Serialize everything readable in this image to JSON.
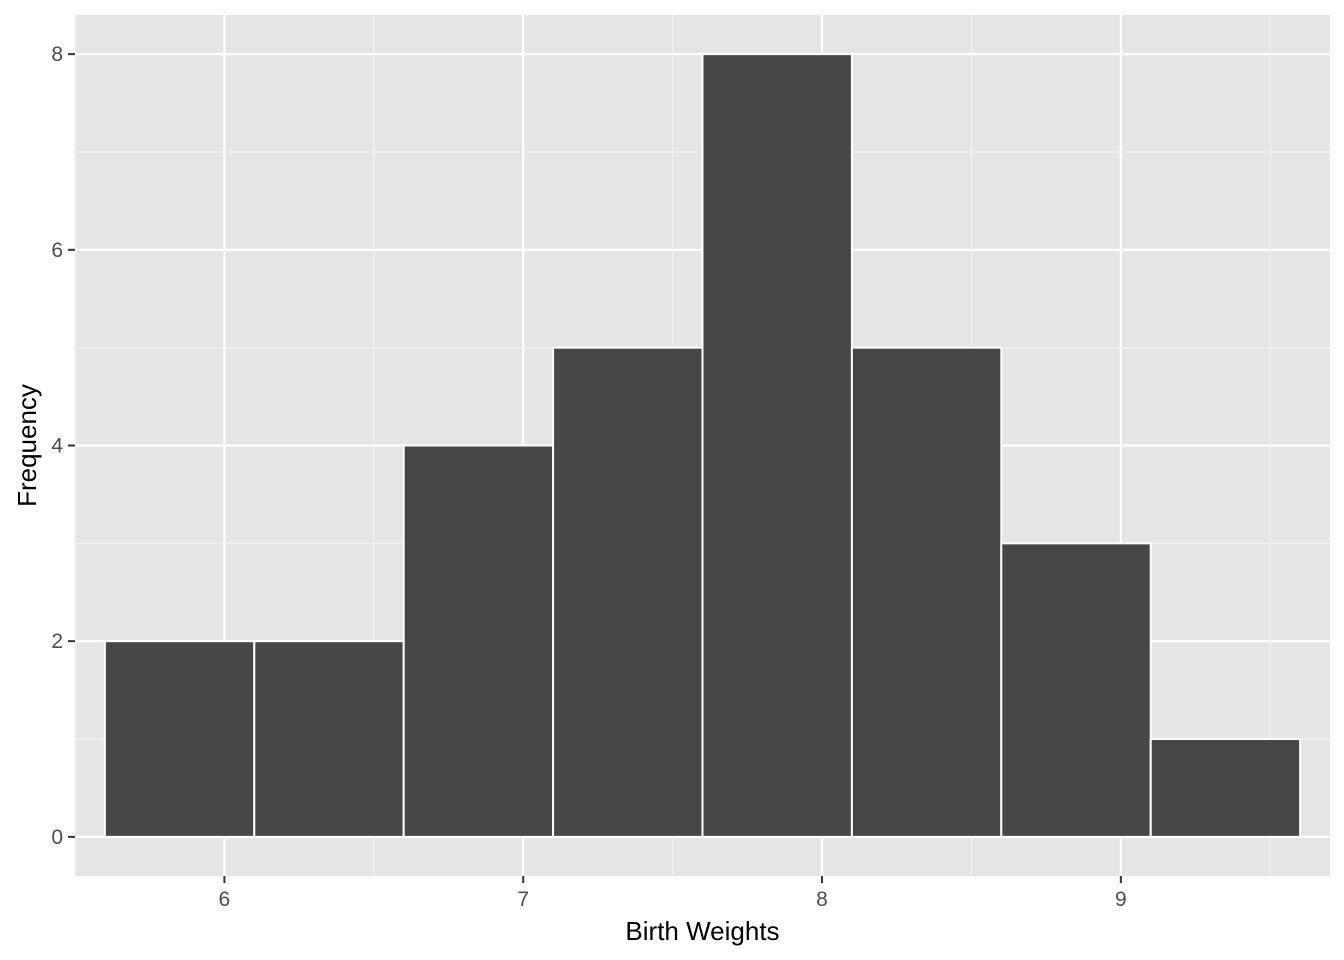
{
  "chart_data": {
    "type": "histogram",
    "title": "",
    "xlabel": "Birth Weights",
    "ylabel": "Frequency",
    "xlim": [
      5.5,
      9.7
    ],
    "ylim": [
      -0.4,
      8.4
    ],
    "x_ticks": [
      6,
      7,
      8,
      9
    ],
    "x_minor_ticks": [
      5.5,
      6.5,
      7.5,
      8.5,
      9.5
    ],
    "y_ticks": [
      0,
      2,
      4,
      6,
      8
    ],
    "y_minor_ticks": [
      1,
      3,
      5,
      7
    ],
    "bins": [
      {
        "start": 5.6,
        "end": 6.1,
        "count": 2
      },
      {
        "start": 6.1,
        "end": 6.6,
        "count": 2
      },
      {
        "start": 6.6,
        "end": 7.1,
        "count": 4
      },
      {
        "start": 7.1,
        "end": 7.6,
        "count": 5
      },
      {
        "start": 7.6,
        "end": 8.1,
        "count": 8
      },
      {
        "start": 8.1,
        "end": 8.6,
        "count": 5
      },
      {
        "start": 8.6,
        "end": 9.1,
        "count": 3
      },
      {
        "start": 9.1,
        "end": 9.6,
        "count": 1
      }
    ],
    "grid": true,
    "legend": "none",
    "colors": {
      "panel_background": "#e5e5e5",
      "grid_major": "#ffffff",
      "grid_minor": "#f2f2f2",
      "bar_fill": "#474747",
      "bar_outline": "#ffffff",
      "tick_text": "#4d4d4d",
      "title_text": "#000000"
    }
  }
}
